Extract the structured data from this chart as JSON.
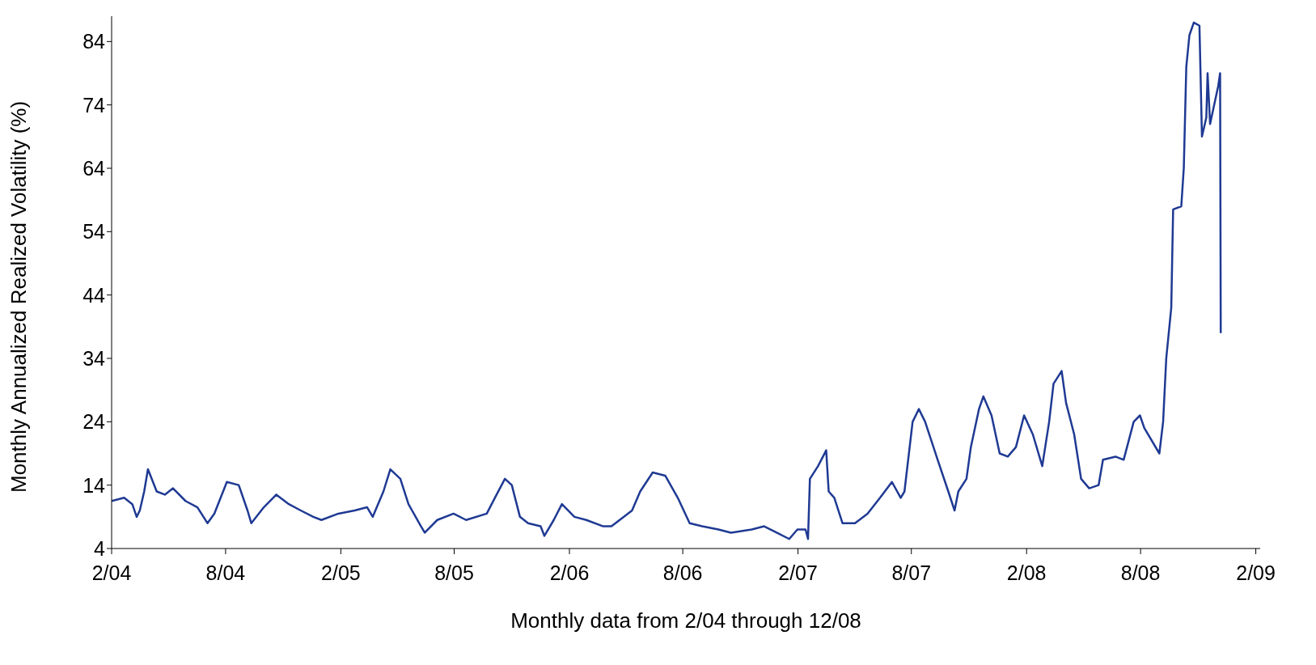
{
  "chart_data": {
    "type": "line",
    "xlabel": "Monthly data from 2/04 through 12/08",
    "ylabel": "Monthly Annualized Realized Volatility (%)",
    "xlim": [
      "2004-02-01",
      "2009-02-08"
    ],
    "xticks": [
      {
        "value": "2004-02-01",
        "label": "2/04"
      },
      {
        "value": "2004-08-01",
        "label": "8/04"
      },
      {
        "value": "2005-02-01",
        "label": "2/05"
      },
      {
        "value": "2005-08-01",
        "label": "8/05"
      },
      {
        "value": "2006-02-01",
        "label": "2/06"
      },
      {
        "value": "2006-08-01",
        "label": "8/06"
      },
      {
        "value": "2007-02-01",
        "label": "2/07"
      },
      {
        "value": "2007-08-01",
        "label": "8/07"
      },
      {
        "value": "2008-02-01",
        "label": "2/08"
      },
      {
        "value": "2008-08-01",
        "label": "8/08"
      },
      {
        "value": "2009-02-01",
        "label": "2/09"
      }
    ],
    "ylim": [
      4,
      88
    ],
    "yticks": [
      4,
      14,
      24,
      34,
      44,
      54,
      64,
      74,
      84
    ],
    "marker": "none",
    "line_style": "solid",
    "series": [
      {
        "color": "#1f3a93",
        "x": [
          "2004-02-01",
          "2004-02-21",
          "2004-03-05",
          "2004-03-12",
          "2004-03-17",
          "2004-03-24",
          "2004-03-30",
          "2004-04-13",
          "2004-04-26",
          "2004-05-09",
          "2004-05-29",
          "2004-06-17",
          "2004-07-03",
          "2004-07-14",
          "2004-08-03",
          "2004-08-22",
          "2004-09-05",
          "2004-09-11",
          "2004-10-01",
          "2004-10-21",
          "2004-11-10",
          "2004-11-29",
          "2004-12-19",
          "2005-01-01",
          "2005-01-28",
          "2005-02-23",
          "2005-03-15",
          "2005-03-24",
          "2005-04-10",
          "2005-04-21",
          "2005-05-07",
          "2005-05-20",
          "2005-06-09",
          "2005-06-15",
          "2005-07-05",
          "2005-07-31",
          "2005-08-20",
          "2005-09-22",
          "2005-10-05",
          "2005-10-21",
          "2005-11-01",
          "2005-11-14",
          "2005-11-27",
          "2005-12-17",
          "2005-12-23",
          "2006-01-07",
          "2006-01-20",
          "2006-02-09",
          "2006-02-28",
          "2006-03-27",
          "2006-04-09",
          "2006-04-29",
          "2006-05-12",
          "2006-05-25",
          "2006-06-14",
          "2006-07-04",
          "2006-07-24",
          "2006-08-12",
          "2006-09-01",
          "2006-09-27",
          "2006-10-17",
          "2006-11-19",
          "2006-12-09",
          "2006-12-29",
          "2007-01-18",
          "2007-01-31",
          "2007-02-13",
          "2007-02-17",
          "2007-02-20",
          "2007-03-05",
          "2007-03-18",
          "2007-03-22",
          "2007-03-31",
          "2007-04-13",
          "2007-05-03",
          "2007-05-23",
          "2007-06-12",
          "2007-07-01",
          "2007-07-15",
          "2007-07-21",
          "2007-08-03",
          "2007-08-13",
          "2007-08-23",
          "2007-09-12",
          "2007-09-29",
          "2007-10-09",
          "2007-10-15",
          "2007-10-28",
          "2007-11-04",
          "2007-11-17",
          "2007-11-24",
          "2007-12-07",
          "2007-12-20",
          "2008-01-02",
          "2008-01-15",
          "2008-01-28",
          "2008-02-11",
          "2008-02-26",
          "2008-03-08",
          "2008-03-15",
          "2008-03-28",
          "2008-04-04",
          "2008-04-17",
          "2008-04-28",
          "2008-05-11",
          "2008-05-26",
          "2008-06-02",
          "2008-06-22",
          "2008-07-05",
          "2008-07-21",
          "2008-07-31",
          "2008-08-07",
          "2008-08-31",
          "2008-09-06",
          "2008-09-11",
          "2008-09-19",
          "2008-09-22",
          "2008-10-05",
          "2008-10-09",
          "2008-10-13",
          "2008-10-18",
          "2008-10-25",
          "2008-11-03",
          "2008-11-07",
          "2008-11-14",
          "2008-11-16",
          "2008-11-20",
          "2008-12-03",
          "2008-12-06",
          "2008-12-07"
        ],
        "values": [
          11.5,
          12,
          11,
          9,
          10,
          13,
          16.5,
          13,
          12.5,
          13.5,
          11.5,
          10.5,
          8,
          9.5,
          14.5,
          14,
          10,
          8,
          10.5,
          12.5,
          11,
          10,
          9,
          8.5,
          9.5,
          10,
          10.5,
          9,
          13,
          16.5,
          15,
          11,
          7.5,
          6.5,
          8.5,
          9.5,
          8.5,
          9.5,
          12,
          15,
          14,
          9,
          8,
          7.5,
          6,
          8.5,
          11,
          9,
          8.5,
          7.5,
          7.5,
          9,
          10,
          13,
          16,
          15.5,
          12,
          8,
          7.5,
          7,
          6.5,
          7,
          7.5,
          6.5,
          5.5,
          7,
          7,
          5.5,
          15,
          17,
          19.5,
          13,
          12,
          8,
          8,
          9.5,
          12,
          14.5,
          12,
          13,
          24,
          26,
          24,
          18,
          13,
          10,
          13,
          15,
          20,
          26,
          28,
          25,
          19,
          18.5,
          20,
          25,
          22,
          17,
          24,
          30,
          32,
          27,
          22,
          15,
          13.5,
          14,
          18,
          18.5,
          18,
          24,
          25,
          23,
          19,
          24,
          34,
          42,
          57.5,
          58,
          64,
          80,
          85,
          87,
          86.5,
          69,
          72,
          79,
          71,
          77,
          79,
          38
        ]
      }
    ]
  }
}
